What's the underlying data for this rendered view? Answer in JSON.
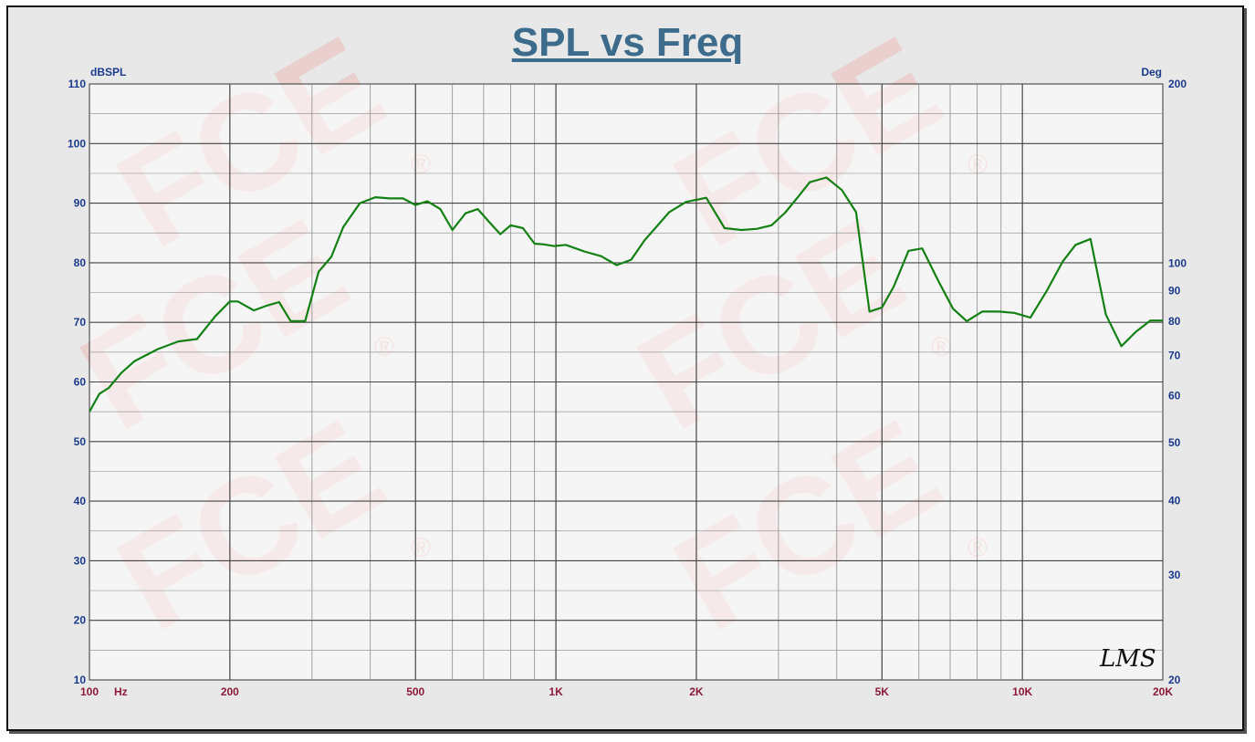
{
  "colors": {
    "background": "#e8e8e8",
    "plot_background": "#ffffff",
    "grid": "#555555",
    "curve": "#138013",
    "title": "#3c6b8c",
    "left_axis_text": "#1a3a8c",
    "right_axis_text": "#1a3a8c",
    "x_axis_text": "#8c1a3a"
  },
  "watermark": {
    "text": "FCE",
    "mark": "®",
    "stamp": "LMS"
  },
  "chart_data": {
    "type": "line",
    "title": "SPL vs Freq",
    "xlabel": "Hz",
    "ylabel": "dBSPL",
    "y2label": "Deg",
    "xscale": "log",
    "xlim": [
      100,
      20000
    ],
    "ylim": [
      10,
      110
    ],
    "grid": true,
    "x_ticks": [
      "100",
      "200",
      "500",
      "1K",
      "2K",
      "5K",
      "10K",
      "20K"
    ],
    "x_tick_values": [
      100,
      200,
      500,
      1000,
      2000,
      5000,
      10000,
      20000
    ],
    "y_ticks": [
      "10",
      "20",
      "30",
      "40",
      "50",
      "60",
      "70",
      "80",
      "90",
      "100",
      "110"
    ],
    "y2_ticks": [
      "20",
      "30",
      "40",
      "50",
      "60",
      "70",
      "80",
      "90",
      "100",
      "200"
    ],
    "y2_tick_values": [
      20,
      30,
      40,
      50,
      60,
      70,
      80,
      90,
      100,
      200
    ],
    "y2lim": [
      20,
      200
    ],
    "y2scale": "log",
    "series": [
      {
        "x": [
          100,
          105,
          110,
          117,
          125,
          140,
          155,
          170,
          186,
          200,
          208,
          225,
          240,
          255,
          270,
          290,
          310,
          330,
          350,
          380,
          410,
          440,
          470,
          500,
          530,
          565,
          600,
          640,
          680,
          720,
          760,
          800,
          850,
          900,
          940,
          990,
          1050,
          1150,
          1250,
          1350,
          1450,
          1550,
          1650,
          1750,
          1900,
          2100,
          2300,
          2500,
          2700,
          2900,
          3100,
          3300,
          3500,
          3800,
          4100,
          4400,
          4700,
          5000,
          5300,
          5700,
          6100,
          6600,
          7100,
          7600,
          8200,
          8900,
          9600,
          10400,
          11300,
          12200,
          13000,
          14000,
          15100,
          16300,
          17500,
          18800,
          20000
        ],
        "y": [
          55,
          58,
          59,
          61.5,
          63.5,
          65.5,
          66.8,
          67.2,
          71,
          73.5,
          73.5,
          72,
          72.8,
          73.4,
          70.2,
          70.2,
          78.5,
          81,
          86,
          90,
          91,
          90.8,
          90.8,
          89.7,
          90.3,
          89,
          85.5,
          88.3,
          89.0,
          86.8,
          84.8,
          86.3,
          85.8,
          83.2,
          83.1,
          82.8,
          83.0,
          81.9,
          81.1,
          79.6,
          80.5,
          83.8,
          86.2,
          88.5,
          90.2,
          90.9,
          85.8,
          85.5,
          85.7,
          86.3,
          88.4,
          91,
          93.5,
          94.3,
          92.2,
          88.5,
          71.8,
          72.5,
          76.0,
          82.0,
          82.4,
          77.0,
          72.3,
          70.2,
          71.8,
          71.8,
          71.6,
          70.8,
          75.4,
          80.2,
          83.0,
          84.0,
          71.3,
          66.0,
          68.4,
          70.3,
          70.3
        ]
      }
    ]
  }
}
